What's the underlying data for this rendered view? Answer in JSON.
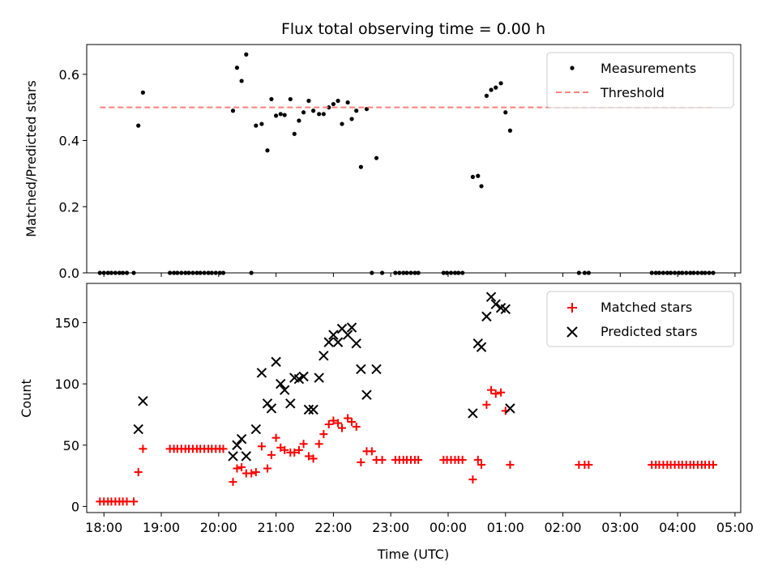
{
  "chart_data": [
    {
      "type": "scatter",
      "title": "Flux total observing time = 0.00 h",
      "ylabel": "Matched/Predicted stars",
      "xlabel": "",
      "x_ticks": [
        "18:00",
        "19:00",
        "20:00",
        "21:00",
        "22:00",
        "23:00",
        "00:00",
        "01:00",
        "02:00",
        "03:00",
        "04:00",
        "05:00"
      ],
      "y_ticks": [
        "0.0",
        "0.2",
        "0.4",
        "0.6"
      ],
      "ylim": [
        0,
        0.69
      ],
      "xlim_hours": [
        17.7,
        29.1
      ],
      "legend": [
        "Measurements",
        "Threshold"
      ],
      "legend_position": "upper right",
      "series": [
        {
          "name": "Measurements",
          "color": "#000000",
          "marker": "dot",
          "points": [
            [
              17.93,
              0
            ],
            [
              18.0,
              0
            ],
            [
              18.07,
              0
            ],
            [
              18.13,
              0
            ],
            [
              18.2,
              0
            ],
            [
              18.27,
              0
            ],
            [
              18.33,
              0
            ],
            [
              18.4,
              0
            ],
            [
              18.52,
              0
            ],
            [
              18.6,
              0.445
            ],
            [
              18.68,
              0.545
            ],
            [
              19.15,
              0
            ],
            [
              19.22,
              0
            ],
            [
              19.28,
              0
            ],
            [
              19.35,
              0
            ],
            [
              19.42,
              0
            ],
            [
              19.48,
              0
            ],
            [
              19.55,
              0
            ],
            [
              19.62,
              0
            ],
            [
              19.68,
              0
            ],
            [
              19.75,
              0
            ],
            [
              19.82,
              0
            ],
            [
              19.88,
              0
            ],
            [
              19.95,
              0
            ],
            [
              20.02,
              0
            ],
            [
              20.08,
              0
            ],
            [
              20.25,
              0.49
            ],
            [
              20.32,
              0.62
            ],
            [
              20.4,
              0.58
            ],
            [
              20.48,
              0.66
            ],
            [
              20.57,
              0
            ],
            [
              20.65,
              0.445
            ],
            [
              20.75,
              0.45
            ],
            [
              20.85,
              0.37
            ],
            [
              20.92,
              0.525
            ],
            [
              21.0,
              0.475
            ],
            [
              21.08,
              0.48
            ],
            [
              21.15,
              0.477
            ],
            [
              21.25,
              0.525
            ],
            [
              21.32,
              0.42
            ],
            [
              21.4,
              0.46
            ],
            [
              21.48,
              0.485
            ],
            [
              21.57,
              0.52
            ],
            [
              21.65,
              0.49
            ],
            [
              21.75,
              0.48
            ],
            [
              21.83,
              0.48
            ],
            [
              21.92,
              0.5
            ],
            [
              22.0,
              0.51
            ],
            [
              22.08,
              0.52
            ],
            [
              22.15,
              0.45
            ],
            [
              22.25,
              0.515
            ],
            [
              22.32,
              0.465
            ],
            [
              22.4,
              0.49
            ],
            [
              22.48,
              0.32
            ],
            [
              22.58,
              0.495
            ],
            [
              22.67,
              0
            ],
            [
              22.75,
              0.347
            ],
            [
              22.85,
              0
            ],
            [
              23.08,
              0
            ],
            [
              23.15,
              0
            ],
            [
              23.22,
              0
            ],
            [
              23.28,
              0
            ],
            [
              23.35,
              0
            ],
            [
              23.42,
              0
            ],
            [
              23.48,
              0
            ],
            [
              23.92,
              0
            ],
            [
              23.98,
              0
            ],
            [
              24.05,
              0
            ],
            [
              24.12,
              0
            ],
            [
              24.18,
              0
            ],
            [
              24.25,
              0
            ],
            [
              24.43,
              0.29
            ],
            [
              24.52,
              0.293
            ],
            [
              24.58,
              0.262
            ],
            [
              24.67,
              0.535
            ],
            [
              24.75,
              0.553
            ],
            [
              24.83,
              0.56
            ],
            [
              24.92,
              0.573
            ],
            [
              25.0,
              0.485
            ],
            [
              25.08,
              0.43
            ],
            [
              26.28,
              0
            ],
            [
              26.38,
              0
            ],
            [
              26.45,
              0
            ],
            [
              27.55,
              0
            ],
            [
              27.62,
              0
            ],
            [
              27.68,
              0
            ],
            [
              27.75,
              0
            ],
            [
              27.82,
              0
            ],
            [
              27.88,
              0
            ],
            [
              27.95,
              0
            ],
            [
              28.02,
              0
            ],
            [
              28.08,
              0
            ],
            [
              28.15,
              0
            ],
            [
              28.22,
              0
            ],
            [
              28.28,
              0
            ],
            [
              28.35,
              0
            ],
            [
              28.42,
              0
            ],
            [
              28.48,
              0
            ],
            [
              28.55,
              0
            ],
            [
              28.62,
              0
            ]
          ]
        },
        {
          "name": "Threshold",
          "color": "#ff7f7f",
          "style": "dashed",
          "x": [
            17.93,
            28.62
          ],
          "y": [
            0.5,
            0.5
          ]
        }
      ]
    },
    {
      "type": "scatter",
      "title": "",
      "ylabel": "Count",
      "xlabel": "Time (UTC)",
      "x_ticks": [
        "18:00",
        "19:00",
        "20:00",
        "21:00",
        "22:00",
        "23:00",
        "00:00",
        "01:00",
        "02:00",
        "03:00",
        "04:00",
        "05:00"
      ],
      "y_ticks": [
        "0",
        "50",
        "100",
        "150"
      ],
      "ylim": [
        -5,
        182
      ],
      "xlim_hours": [
        17.7,
        29.1
      ],
      "legend": [
        "Matched stars",
        "Predicted stars"
      ],
      "legend_position": "upper right",
      "series": [
        {
          "name": "Matched stars",
          "color": "#ff0000",
          "marker": "plus",
          "points": [
            [
              17.93,
              4
            ],
            [
              18.0,
              4
            ],
            [
              18.07,
              4
            ],
            [
              18.13,
              4
            ],
            [
              18.2,
              4
            ],
            [
              18.27,
              4
            ],
            [
              18.33,
              4
            ],
            [
              18.4,
              4
            ],
            [
              18.52,
              4
            ],
            [
              18.6,
              28
            ],
            [
              18.68,
              47
            ],
            [
              19.15,
              47
            ],
            [
              19.22,
              47
            ],
            [
              19.28,
              47
            ],
            [
              19.35,
              47
            ],
            [
              19.42,
              47
            ],
            [
              19.48,
              47
            ],
            [
              19.55,
              47
            ],
            [
              19.62,
              47
            ],
            [
              19.68,
              47
            ],
            [
              19.75,
              47
            ],
            [
              19.82,
              47
            ],
            [
              19.88,
              47
            ],
            [
              19.95,
              47
            ],
            [
              20.02,
              47
            ],
            [
              20.08,
              47
            ],
            [
              20.25,
              20
            ],
            [
              20.32,
              31
            ],
            [
              20.4,
              32
            ],
            [
              20.48,
              27
            ],
            [
              20.57,
              27
            ],
            [
              20.65,
              28
            ],
            [
              20.75,
              49
            ],
            [
              20.85,
              31
            ],
            [
              20.92,
              42
            ],
            [
              21.0,
              56
            ],
            [
              21.08,
              48
            ],
            [
              21.15,
              46
            ],
            [
              21.25,
              44
            ],
            [
              21.32,
              44
            ],
            [
              21.4,
              46
            ],
            [
              21.48,
              51
            ],
            [
              21.57,
              41
            ],
            [
              21.65,
              39
            ],
            [
              21.75,
              51
            ],
            [
              21.83,
              59
            ],
            [
              21.92,
              67
            ],
            [
              22.0,
              70
            ],
            [
              22.08,
              68
            ],
            [
              22.15,
              64
            ],
            [
              22.25,
              72
            ],
            [
              22.32,
              69
            ],
            [
              22.4,
              65
            ],
            [
              22.48,
              36
            ],
            [
              22.58,
              45
            ],
            [
              22.67,
              45
            ],
            [
              22.75,
              38
            ],
            [
              22.85,
              38
            ],
            [
              23.08,
              38
            ],
            [
              23.15,
              38
            ],
            [
              23.22,
              38
            ],
            [
              23.28,
              38
            ],
            [
              23.35,
              38
            ],
            [
              23.42,
              38
            ],
            [
              23.48,
              38
            ],
            [
              23.92,
              38
            ],
            [
              23.98,
              38
            ],
            [
              24.05,
              38
            ],
            [
              24.12,
              38
            ],
            [
              24.18,
              38
            ],
            [
              24.25,
              38
            ],
            [
              24.43,
              22
            ],
            [
              24.52,
              38
            ],
            [
              24.58,
              34
            ],
            [
              24.67,
              83
            ],
            [
              24.75,
              95
            ],
            [
              24.83,
              92
            ],
            [
              24.92,
              93
            ],
            [
              25.0,
              78
            ],
            [
              25.08,
              34
            ],
            [
              26.28,
              34
            ],
            [
              26.38,
              34
            ],
            [
              26.45,
              34
            ],
            [
              27.55,
              34
            ],
            [
              27.62,
              34
            ],
            [
              27.68,
              34
            ],
            [
              27.75,
              34
            ],
            [
              27.82,
              34
            ],
            [
              27.88,
              34
            ],
            [
              27.95,
              34
            ],
            [
              28.02,
              34
            ],
            [
              28.08,
              34
            ],
            [
              28.15,
              34
            ],
            [
              28.22,
              34
            ],
            [
              28.28,
              34
            ],
            [
              28.35,
              34
            ],
            [
              28.42,
              34
            ],
            [
              28.48,
              34
            ],
            [
              28.55,
              34
            ],
            [
              28.62,
              34
            ]
          ]
        },
        {
          "name": "Predicted stars",
          "color": "#000000",
          "marker": "x",
          "points": [
            [
              18.6,
              63
            ],
            [
              18.68,
              86
            ],
            [
              20.25,
              41
            ],
            [
              20.32,
              50
            ],
            [
              20.4,
              55
            ],
            [
              20.48,
              41
            ],
            [
              20.65,
              63
            ],
            [
              20.75,
              109
            ],
            [
              20.85,
              84
            ],
            [
              20.92,
              80
            ],
            [
              21.0,
              118
            ],
            [
              21.08,
              100
            ],
            [
              21.15,
              95
            ],
            [
              21.25,
              84
            ],
            [
              21.32,
              105
            ],
            [
              21.4,
              104
            ],
            [
              21.48,
              106
            ],
            [
              21.57,
              79
            ],
            [
              21.65,
              79
            ],
            [
              21.75,
              105
            ],
            [
              21.83,
              123
            ],
            [
              21.92,
              134
            ],
            [
              22.0,
              140
            ],
            [
              22.08,
              134
            ],
            [
              22.15,
              145
            ],
            [
              22.25,
              140
            ],
            [
              22.32,
              146
            ],
            [
              22.4,
              133
            ],
            [
              22.48,
              112
            ],
            [
              22.58,
              91
            ],
            [
              22.75,
              112
            ],
            [
              24.43,
              76
            ],
            [
              24.52,
              133
            ],
            [
              24.58,
              130
            ],
            [
              24.67,
              155
            ],
            [
              24.75,
              171
            ],
            [
              24.83,
              165
            ],
            [
              24.92,
              162
            ],
            [
              25.0,
              161
            ],
            [
              25.08,
              80
            ]
          ]
        }
      ]
    }
  ]
}
